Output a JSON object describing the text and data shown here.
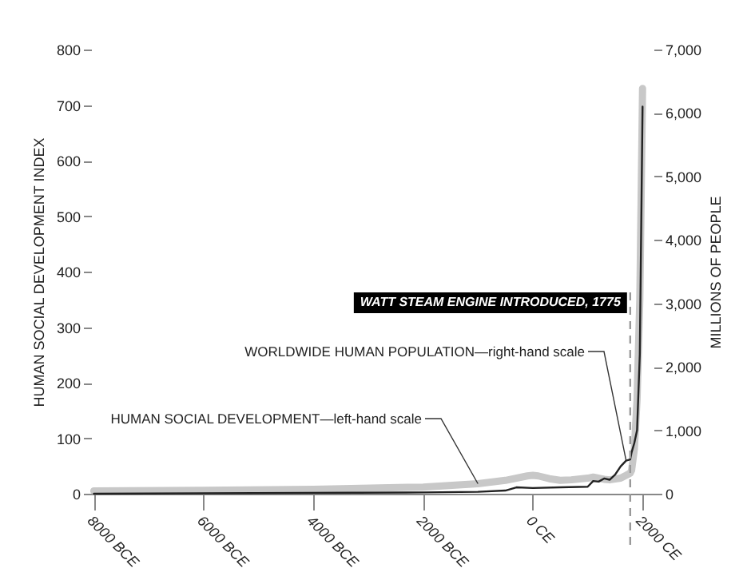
{
  "chart_data": {
    "type": "line",
    "xlim": [
      -8050,
      2200
    ],
    "xticks": [
      {
        "value": -8000,
        "label": "8000 BCE"
      },
      {
        "value": -6000,
        "label": "6000 BCE"
      },
      {
        "value": -4000,
        "label": "4000 BCE"
      },
      {
        "value": -2000,
        "label": "2000 BCE"
      },
      {
        "value": 0,
        "label": "0 CE"
      },
      {
        "value": 2000,
        "label": "2000 CE"
      }
    ],
    "ylim": [
      0,
      800
    ],
    "yticks": [
      0,
      100,
      200,
      300,
      400,
      500,
      600,
      700,
      800
    ],
    "y2lim": [
      0,
      7000
    ],
    "y2ticks": [
      0,
      {
        "value": 1000,
        "label": "1,000"
      },
      {
        "value": 2000,
        "label": "2,000"
      },
      {
        "value": 3000,
        "label": "3,000"
      },
      {
        "value": 4000,
        "label": "4,000"
      },
      {
        "value": 5000,
        "label": "5,000"
      },
      {
        "value": 6000,
        "label": "6,000"
      },
      {
        "value": 7000,
        "label": "7,000"
      }
    ],
    "ylabel": "HUMAN SOCIAL DEVELOPMENT INDEX",
    "y2label": "MILLIONS OF PEOPLE",
    "series": [
      {
        "color": "#c8c8c8",
        "x": [
          -8000,
          -6000,
          -4000,
          -2000,
          -1000,
          -500,
          -100,
          0,
          100,
          300,
          500,
          700,
          1000,
          1100,
          1300,
          1400,
          1600,
          1700,
          1775,
          1800,
          1850,
          1900,
          1950,
          2000
        ],
        "values": [
          5,
          6,
          8,
          12,
          18,
          24,
          32,
          33,
          32,
          27,
          24,
          25,
          28,
          30,
          26,
          25,
          28,
          33,
          37,
          42,
          80,
          170,
          350,
          730
        ]
      },
      {
        "color": "#222222",
        "axis": "y2",
        "x": [
          -8000,
          -2000,
          -1000,
          -500,
          -300,
          0,
          500,
          1000,
          1100,
          1200,
          1300,
          1400,
          1500,
          1600,
          1700,
          1775,
          1800,
          1850,
          1900,
          1950,
          2000
        ],
        "values": [
          0,
          20,
          30,
          50,
          100,
          90,
          100,
          110,
          200,
          190,
          240,
          220,
          300,
          430,
          520,
          540,
          650,
          800,
          1000,
          2200,
          6100
        ]
      }
    ],
    "ref_lines": [
      {
        "axis": "x",
        "value": 1775,
        "label": "WATT STEAM ENGINE INTRODUCED, 1775",
        "line_style": "dashed",
        "color": "#999999"
      }
    ],
    "annotations": [
      {
        "text": "HUMAN SOCIAL DEVELOPMENT—left-hand scale",
        "x": -1000,
        "y": 18
      },
      {
        "text": "WORLDWIDE HUMAN POPULATION—right-hand scale",
        "x": 1700,
        "y": 60
      }
    ],
    "grid": false,
    "line_style": "solid",
    "marker": "none"
  }
}
